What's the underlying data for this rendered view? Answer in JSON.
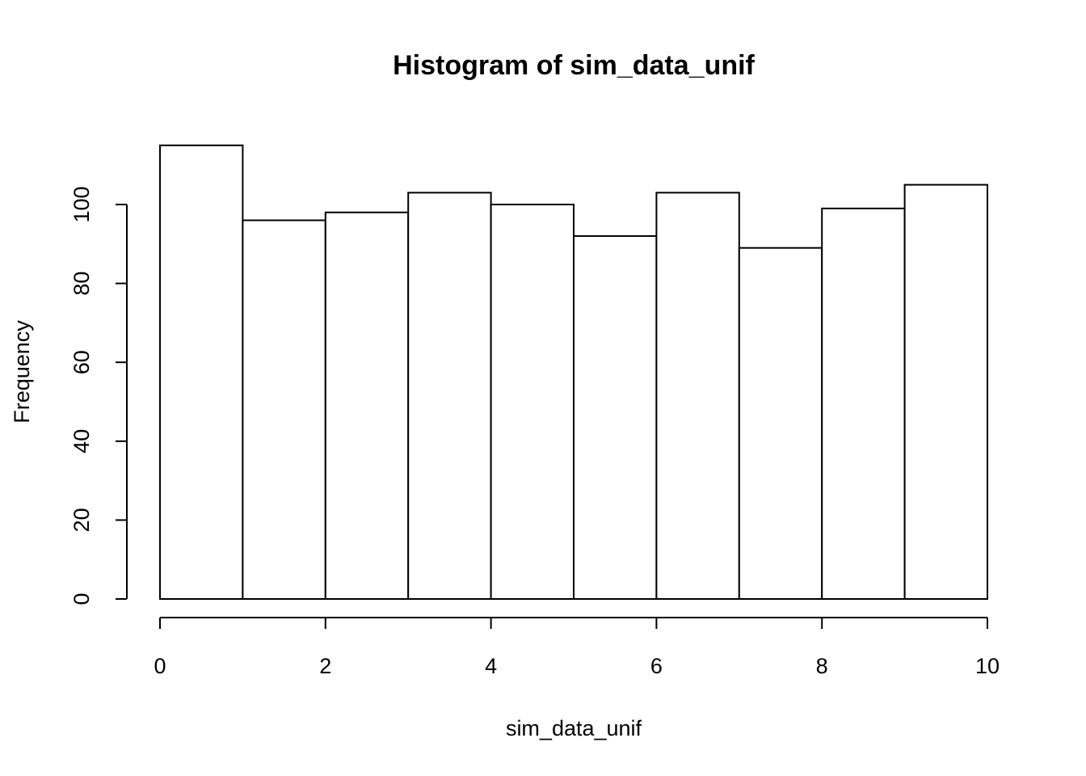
{
  "chart_data": {
    "type": "bar",
    "title": "Histogram of sim_data_unif",
    "xlabel": "sim_data_unif",
    "ylabel": "Frequency",
    "bins": [
      {
        "start": 0,
        "end": 1,
        "count": 115
      },
      {
        "start": 1,
        "end": 2,
        "count": 96
      },
      {
        "start": 2,
        "end": 3,
        "count": 98
      },
      {
        "start": 3,
        "end": 4,
        "count": 103
      },
      {
        "start": 4,
        "end": 5,
        "count": 100
      },
      {
        "start": 5,
        "end": 6,
        "count": 92
      },
      {
        "start": 6,
        "end": 7,
        "count": 103
      },
      {
        "start": 7,
        "end": 8,
        "count": 89
      },
      {
        "start": 8,
        "end": 9,
        "count": 99
      },
      {
        "start": 9,
        "end": 10,
        "count": 105
      }
    ],
    "xlim": [
      0,
      10
    ],
    "ylim": [
      0,
      115
    ],
    "x_ticks": [
      0,
      2,
      4,
      6,
      8,
      10
    ],
    "x_tick_labels": [
      "0",
      "2",
      "4",
      "6",
      "8",
      "10"
    ],
    "y_ticks": [
      0,
      20,
      40,
      60,
      80,
      100
    ],
    "y_tick_labels": [
      "0",
      "20",
      "40",
      "60",
      "80",
      "100"
    ],
    "grid": false,
    "legend": "none",
    "bar_fill": "#ffffff",
    "bar_stroke": "#000000"
  }
}
